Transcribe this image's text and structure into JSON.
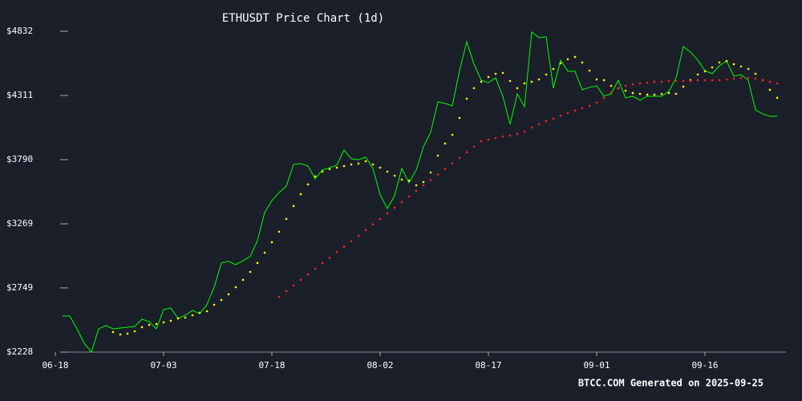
{
  "chart_data": {
    "type": "line",
    "title": "ETHUSDT Price Chart (1d)",
    "footer": "BTCC.COM Generated on 2025-09-25",
    "x": [
      "06-18",
      "06-19",
      "06-20",
      "06-21",
      "06-22",
      "06-23",
      "06-24",
      "06-25",
      "06-26",
      "06-27",
      "06-28",
      "06-29",
      "06-30",
      "07-01",
      "07-02",
      "07-03",
      "07-04",
      "07-05",
      "07-06",
      "07-07",
      "07-08",
      "07-09",
      "07-10",
      "07-11",
      "07-12",
      "07-13",
      "07-14",
      "07-15",
      "07-16",
      "07-17",
      "07-18",
      "07-19",
      "07-20",
      "07-21",
      "07-22",
      "07-23",
      "07-24",
      "07-25",
      "07-26",
      "07-27",
      "07-28",
      "07-29",
      "07-30",
      "07-31",
      "08-01",
      "08-02",
      "08-03",
      "08-04",
      "08-05",
      "08-06",
      "08-07",
      "08-08",
      "08-09",
      "08-10",
      "08-11",
      "08-12",
      "08-13",
      "08-14",
      "08-15",
      "08-16",
      "08-17",
      "08-18",
      "08-19",
      "08-20",
      "08-21",
      "08-22",
      "08-23",
      "08-24",
      "08-25",
      "08-26",
      "08-27",
      "08-28",
      "08-29",
      "08-30",
      "08-31",
      "09-01",
      "09-02",
      "09-03",
      "09-04",
      "09-05",
      "09-06",
      "09-07",
      "09-08",
      "09-09",
      "09-10",
      "09-11",
      "09-12",
      "09-13",
      "09-14",
      "09-15",
      "09-16",
      "09-17",
      "09-18",
      "09-19",
      "09-20",
      "09-21",
      "09-22",
      "09-23",
      "09-24",
      "09-25",
      "09-26"
    ],
    "xticks": [
      "06-18",
      "07-03",
      "07-18",
      "08-02",
      "08-17",
      "09-01",
      "09-16"
    ],
    "ylim": [
      2228,
      4832
    ],
    "yticks": [
      {
        "value": 2228,
        "label": "$2228"
      },
      {
        "value": 2749,
        "label": "$2749"
      },
      {
        "value": 3269,
        "label": "$3269"
      },
      {
        "value": 3790,
        "label": "$3790"
      },
      {
        "value": 4311,
        "label": "$4311"
      },
      {
        "value": 4832,
        "label": "$4832"
      }
    ],
    "series": [
      {
        "color": "#00ff00",
        "style": "line",
        "values": [
          null,
          2521,
          2521,
          2417,
          2300,
          2228,
          2417,
          2443,
          2417,
          2423,
          2430,
          2436,
          2495,
          2475,
          2417,
          2573,
          2586,
          2501,
          2527,
          2566,
          2540,
          2612,
          2755,
          2951,
          2964,
          2938,
          2970,
          3003,
          3133,
          3361,
          3458,
          3523,
          3576,
          3751,
          3758,
          3738,
          3634,
          3706,
          3725,
          3745,
          3869,
          3797,
          3790,
          3810,
          3719,
          3504,
          3393,
          3498,
          3719,
          3602,
          3706,
          3895,
          4012,
          4259,
          4246,
          4227,
          4513,
          4747,
          4565,
          4435,
          4415,
          4454,
          4305,
          4077,
          4324,
          4220,
          4826,
          4780,
          4787,
          4370,
          4598,
          4507,
          4507,
          4357,
          4376,
          4389,
          4305,
          4324,
          4435,
          4292,
          4305,
          4272,
          4305,
          4305,
          4305,
          4344,
          4454,
          4708,
          4663,
          4598,
          4513,
          4487,
          4552,
          4591,
          4467,
          4480,
          4435,
          4194,
          4161,
          4142,
          4142
        ]
      },
      {
        "color": "#ffff00",
        "style": "dots",
        "values": [
          null,
          null,
          null,
          null,
          null,
          null,
          null,
          null,
          2391,
          2371,
          2378,
          2397,
          2430,
          2449,
          2456,
          2469,
          2482,
          2501,
          2508,
          2527,
          2547,
          2560,
          2612,
          2651,
          2697,
          2755,
          2814,
          2879,
          2951,
          3035,
          3120,
          3205,
          3309,
          3413,
          3510,
          3589,
          3654,
          3693,
          3713,
          3725,
          3738,
          3751,
          3758,
          3777,
          3751,
          3725,
          3693,
          3660,
          3628,
          3621,
          3582,
          3608,
          3686,
          3823,
          3921,
          3992,
          4129,
          4285,
          4370,
          4422,
          4461,
          4487,
          4494,
          4428,
          4370,
          4409,
          4422,
          4441,
          4481,
          4526,
          4572,
          4605,
          4624,
          4579,
          4513,
          4441,
          4435,
          4389,
          4370,
          4350,
          4331,
          4324,
          4318,
          4318,
          4324,
          4331,
          4324,
          4383,
          4435,
          4481,
          4507,
          4539,
          4579,
          4591,
          4565,
          4546,
          4526,
          4487,
          4435,
          4357,
          4292
        ]
      },
      {
        "color": "#ff2020",
        "style": "dots",
        "values": [
          null,
          null,
          null,
          null,
          null,
          null,
          null,
          null,
          null,
          null,
          null,
          null,
          null,
          null,
          null,
          null,
          null,
          null,
          null,
          null,
          null,
          null,
          null,
          null,
          null,
          null,
          null,
          null,
          null,
          null,
          null,
          2677,
          2723,
          2768,
          2814,
          2859,
          2905,
          2951,
          2993,
          3038,
          3083,
          3128,
          3173,
          3219,
          3264,
          3309,
          3354,
          3400,
          3445,
          3491,
          3536,
          3582,
          3624,
          3670,
          3715,
          3760,
          3805,
          3850,
          3895,
          3940,
          3953,
          3966,
          3979,
          3986,
          3999,
          4018,
          4051,
          4077,
          4103,
          4122,
          4148,
          4168,
          4188,
          4207,
          4227,
          4253,
          4292,
          4337,
          4370,
          4389,
          4402,
          4409,
          4415,
          4422,
          4422,
          4428,
          4428,
          4428,
          4428,
          4435,
          4435,
          4435,
          4435,
          4441,
          4448,
          4454,
          4454,
          4448,
          4435,
          4422,
          4409
        ]
      }
    ]
  }
}
